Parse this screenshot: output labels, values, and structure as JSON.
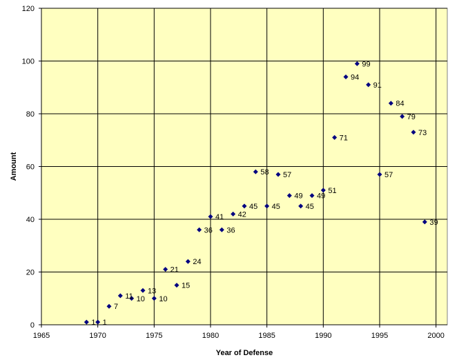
{
  "chart_data": {
    "type": "scatter",
    "title": "",
    "xlabel": "Year of Defense",
    "ylabel": "Amount",
    "xlim": [
      1965,
      2001
    ],
    "ylim": [
      0,
      120
    ],
    "xticks": [
      1965,
      1970,
      1975,
      1980,
      1985,
      1990,
      1995,
      2000
    ],
    "yticks": [
      0,
      20,
      40,
      60,
      80,
      100,
      120
    ],
    "grid": true,
    "legend": "none",
    "colors": {
      "plot_background": "#ffffc0",
      "marker": "#000080",
      "grid": "#000000"
    },
    "points": [
      {
        "x": 1969,
        "y": 1,
        "label": "1"
      },
      {
        "x": 1970,
        "y": 1,
        "label": "1"
      },
      {
        "x": 1971,
        "y": 7,
        "label": "7"
      },
      {
        "x": 1972,
        "y": 11,
        "label": "11"
      },
      {
        "x": 1973,
        "y": 10,
        "label": "10"
      },
      {
        "x": 1974,
        "y": 13,
        "label": "13"
      },
      {
        "x": 1975,
        "y": 10,
        "label": "10"
      },
      {
        "x": 1976,
        "y": 21,
        "label": "21"
      },
      {
        "x": 1977,
        "y": 15,
        "label": "15"
      },
      {
        "x": 1978,
        "y": 24,
        "label": "24"
      },
      {
        "x": 1979,
        "y": 36,
        "label": "36"
      },
      {
        "x": 1980,
        "y": 41,
        "label": "41"
      },
      {
        "x": 1981,
        "y": 36,
        "label": "36"
      },
      {
        "x": 1982,
        "y": 42,
        "label": "42"
      },
      {
        "x": 1983,
        "y": 45,
        "label": "45"
      },
      {
        "x": 1984,
        "y": 58,
        "label": "58"
      },
      {
        "x": 1985,
        "y": 45,
        "label": "45"
      },
      {
        "x": 1986,
        "y": 57,
        "label": "57"
      },
      {
        "x": 1987,
        "y": 49,
        "label": "49"
      },
      {
        "x": 1988,
        "y": 45,
        "label": "45"
      },
      {
        "x": 1989,
        "y": 49,
        "label": "49"
      },
      {
        "x": 1990,
        "y": 51,
        "label": "51"
      },
      {
        "x": 1991,
        "y": 71,
        "label": "71"
      },
      {
        "x": 1992,
        "y": 94,
        "label": "94"
      },
      {
        "x": 1993,
        "y": 99,
        "label": "99"
      },
      {
        "x": 1994,
        "y": 91,
        "label": "91"
      },
      {
        "x": 1995,
        "y": 57,
        "label": "57"
      },
      {
        "x": 1996,
        "y": 84,
        "label": "84"
      },
      {
        "x": 1997,
        "y": 79,
        "label": "79"
      },
      {
        "x": 1998,
        "y": 73,
        "label": "73"
      },
      {
        "x": 1999,
        "y": 39,
        "label": "39"
      }
    ]
  }
}
